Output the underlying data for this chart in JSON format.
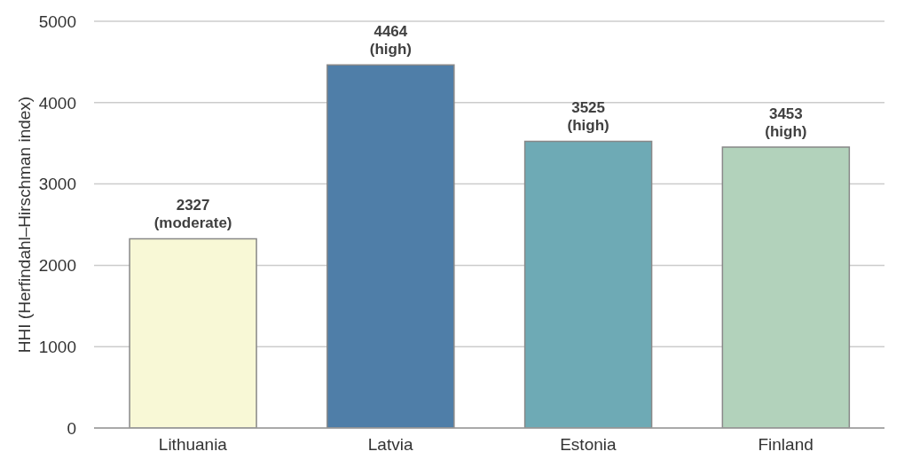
{
  "chart_data": {
    "type": "bar",
    "ylabel": "HHI (Herfindahl–Hirschman index)",
    "categories": [
      "Lithuania",
      "Latvia",
      "Estonia",
      "Finland"
    ],
    "values": [
      2327,
      4464,
      3525,
      3453
    ],
    "colors": [
      "#f8f8d6",
      "#4f7ea8",
      "#6eaab5",
      "#b2d2bb"
    ],
    "value_labels": [
      "2327\n(moderate)",
      "4464\n(high)",
      "3525\n(high)",
      "3453\n(high)"
    ],
    "ylim": [
      0,
      5000
    ],
    "yticks": [
      0,
      1000,
      2000,
      3000,
      4000,
      5000
    ],
    "grid": "y",
    "legend": false
  }
}
